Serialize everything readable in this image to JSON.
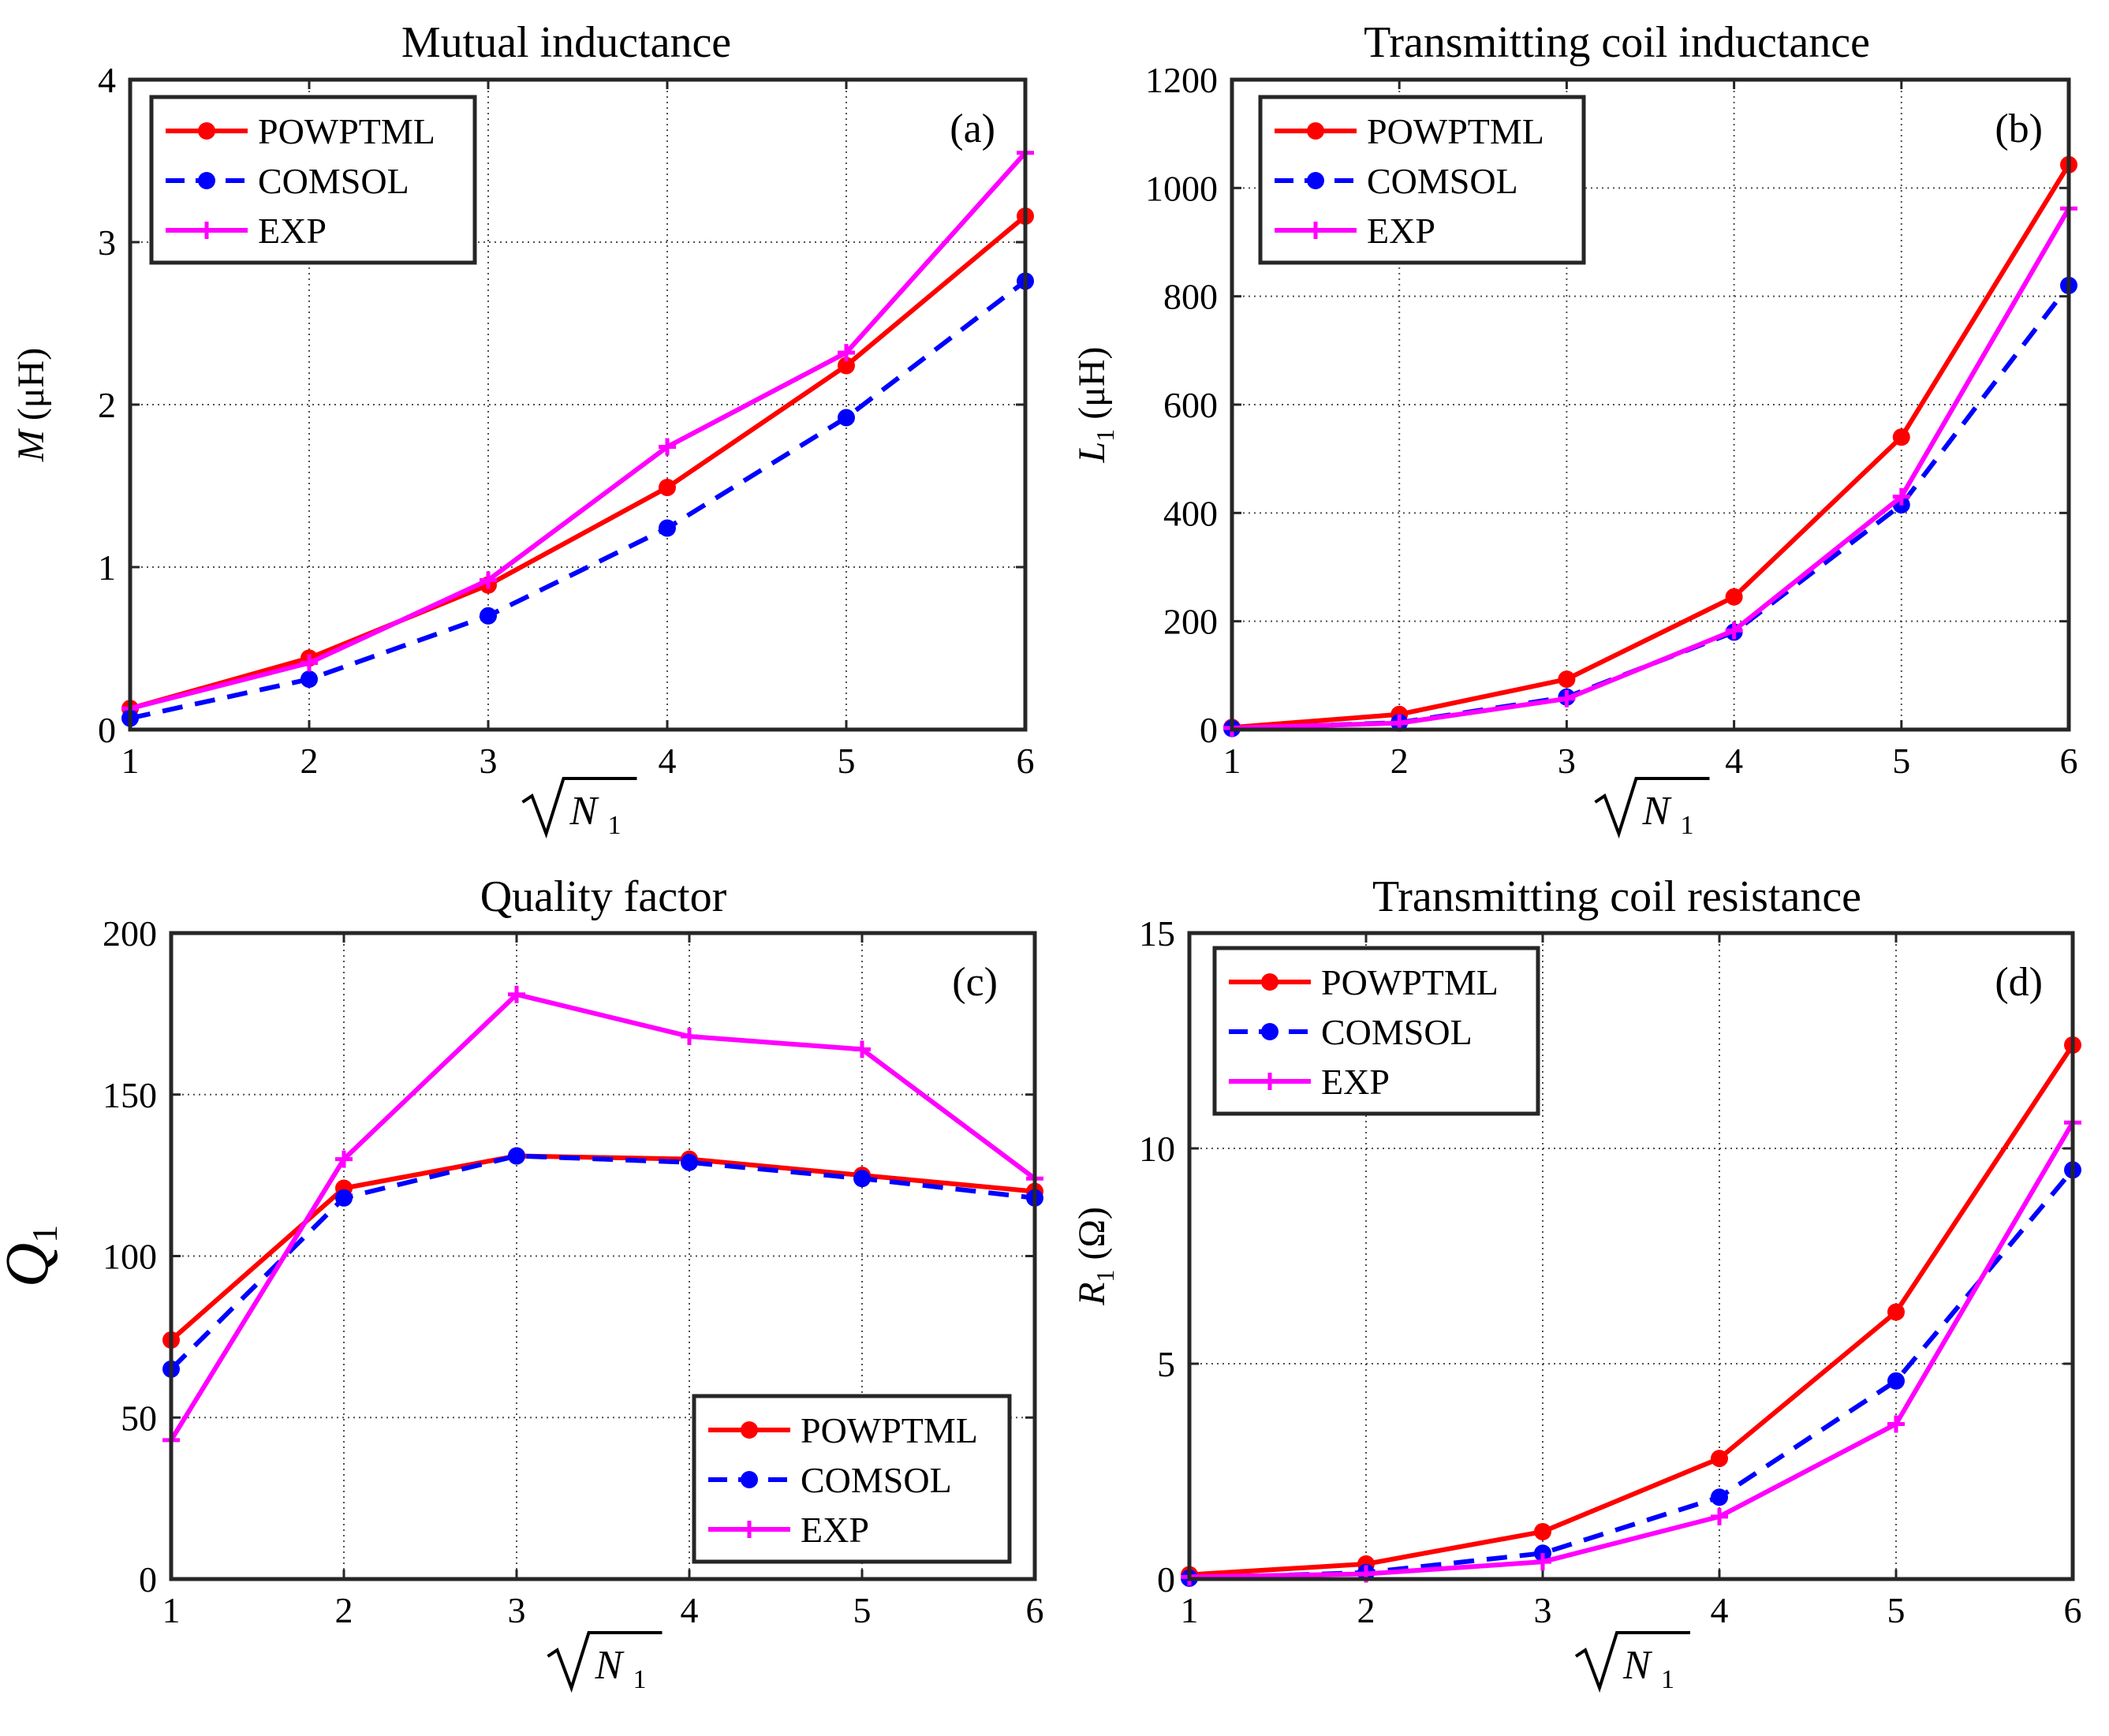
{
  "colors": {
    "powptml": "#ff0000",
    "comsol": "#0000ff",
    "exp": "#ff00ff",
    "axis": "#262626",
    "grid": "#262626"
  },
  "x_label": {
    "sqrt": "√",
    "var": "N",
    "sub": "1"
  },
  "chart_data": [
    {
      "type": "line",
      "title": "Mutual inductance",
      "panel": "(a)",
      "ylabel": {
        "var": "M",
        "sub": "",
        "unit": "(μH)"
      },
      "xlabel": "√N1",
      "x": [
        1,
        2,
        3,
        4,
        5,
        6
      ],
      "xticks": [
        "1",
        "2",
        "3",
        "4",
        "5",
        "6"
      ],
      "xlim": [
        1,
        6
      ],
      "ylim": [
        0,
        4
      ],
      "yticks": [
        0,
        1,
        2,
        3,
        4
      ],
      "ytick_labels": [
        "0",
        "1",
        "2",
        "3",
        "4"
      ],
      "grid": true,
      "legend_position": "top-left",
      "series": [
        {
          "name": "POWPTML",
          "color": "#ff0000",
          "style": "solid",
          "marker": "dot",
          "values": [
            0.13,
            0.44,
            0.89,
            1.49,
            2.24,
            3.16
          ]
        },
        {
          "name": "COMSOL",
          "color": "#0000ff",
          "style": "dashed",
          "marker": "dot",
          "values": [
            0.07,
            0.31,
            0.7,
            1.24,
            1.92,
            2.76
          ]
        },
        {
          "name": "EXP",
          "color": "#ff00ff",
          "style": "solid",
          "marker": "plus",
          "values": [
            0.13,
            0.41,
            0.92,
            1.74,
            2.32,
            3.55
          ]
        }
      ]
    },
    {
      "type": "line",
      "title": "Transmitting coil inductance",
      "panel": "(b)",
      "ylabel": {
        "var": "L",
        "sub": "1",
        "unit": "(μH)"
      },
      "xlabel": "√N1",
      "x": [
        1,
        2,
        3,
        4,
        5,
        6
      ],
      "xticks": [
        "1",
        "2",
        "3",
        "4",
        "5",
        "6"
      ],
      "xlim": [
        1,
        6
      ],
      "ylim": [
        0,
        1200
      ],
      "yticks": [
        0,
        200,
        400,
        600,
        800,
        1000,
        1200
      ],
      "ytick_labels": [
        "0",
        "200",
        "400",
        "600",
        "800",
        "1000",
        "1200"
      ],
      "grid": true,
      "legend_position": "top-left",
      "series": [
        {
          "name": "POWPTML",
          "color": "#ff0000",
          "style": "solid",
          "marker": "dot",
          "values": [
            4,
            28,
            93,
            245,
            540,
            1043
          ]
        },
        {
          "name": "COMSOL",
          "color": "#0000ff",
          "style": "dashed",
          "marker": "dot",
          "values": [
            2,
            13,
            60,
            180,
            415,
            820
          ]
        },
        {
          "name": "EXP",
          "color": "#ff00ff",
          "style": "solid",
          "marker": "plus",
          "values": [
            3,
            12,
            57,
            183,
            430,
            962
          ]
        }
      ]
    },
    {
      "type": "line",
      "title": "Quality factor",
      "panel": "(c)",
      "ylabel": {
        "var": "Q",
        "sub": "1",
        "unit": ""
      },
      "xlabel": "√N1",
      "x": [
        1,
        2,
        3,
        4,
        5,
        6
      ],
      "xticks": [
        "1",
        "2",
        "3",
        "4",
        "5",
        "6"
      ],
      "xlim": [
        1,
        6
      ],
      "ylim": [
        0,
        200
      ],
      "yticks": [
        0,
        50,
        100,
        150,
        200
      ],
      "ytick_labels": [
        "0",
        "50",
        "100",
        "150",
        "200"
      ],
      "grid": true,
      "legend_position": "bottom-right",
      "series": [
        {
          "name": "POWPTML",
          "color": "#ff0000",
          "style": "solid",
          "marker": "dot",
          "values": [
            74,
            121,
            131,
            130,
            125,
            120
          ]
        },
        {
          "name": "COMSOL",
          "color": "#0000ff",
          "style": "dashed",
          "marker": "dot",
          "values": [
            65,
            118,
            131,
            129,
            124,
            118
          ]
        },
        {
          "name": "EXP",
          "color": "#ff00ff",
          "style": "solid",
          "marker": "plus",
          "values": [
            43,
            130,
            181,
            168,
            164,
            124
          ]
        }
      ]
    },
    {
      "type": "line",
      "title": "Transmitting coil resistance",
      "panel": "(d)",
      "ylabel": {
        "var": "R",
        "sub": "1",
        "unit": "(Ω)"
      },
      "xlabel": "√N1",
      "x": [
        1,
        2,
        3,
        4,
        5,
        6
      ],
      "xticks": [
        "1",
        "2",
        "3",
        "4",
        "5",
        "6"
      ],
      "xlim": [
        1,
        6
      ],
      "ylim": [
        0,
        15
      ],
      "yticks": [
        0,
        5,
        10,
        15
      ],
      "ytick_labels": [
        "0",
        "5",
        "10",
        "15"
      ],
      "grid": true,
      "legend_position": "top-left",
      "series": [
        {
          "name": "POWPTML",
          "color": "#ff0000",
          "style": "solid",
          "marker": "dot",
          "values": [
            0.1,
            0.35,
            1.1,
            2.8,
            6.2,
            12.4
          ]
        },
        {
          "name": "COMSOL",
          "color": "#0000ff",
          "style": "dashed",
          "marker": "dot",
          "values": [
            0.02,
            0.15,
            0.6,
            1.9,
            4.6,
            9.5
          ]
        },
        {
          "name": "EXP",
          "color": "#ff00ff",
          "style": "solid",
          "marker": "plus",
          "values": [
            0.05,
            0.12,
            0.4,
            1.45,
            3.6,
            10.6
          ]
        }
      ]
    }
  ]
}
